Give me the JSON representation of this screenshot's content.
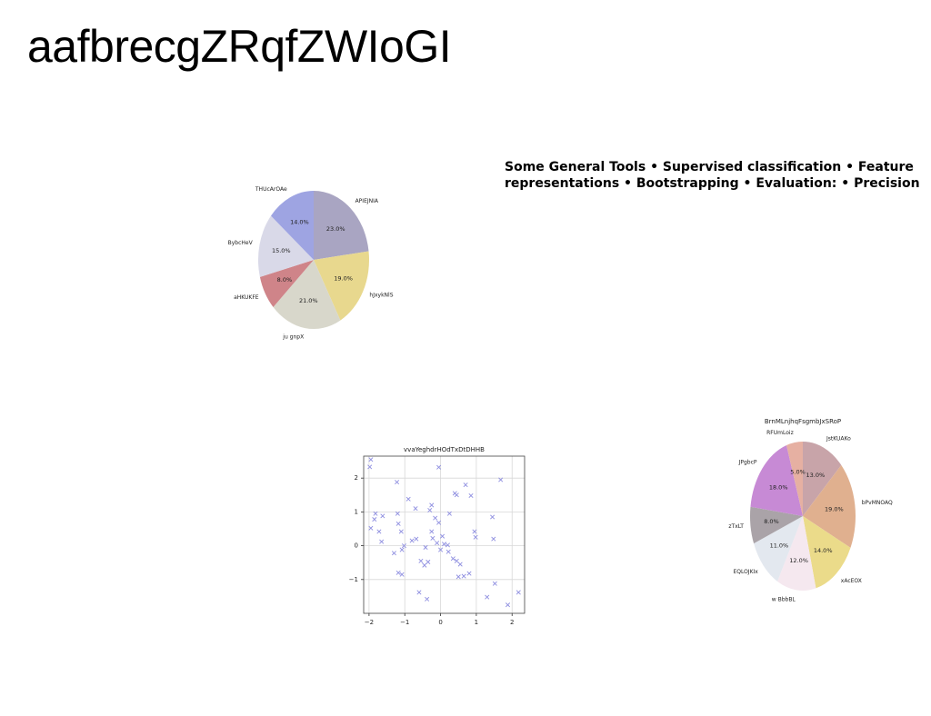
{
  "page": {
    "title": "aafbrecgZRqfZWIoGI",
    "subtitle_line1": "Some General Tools • Supervised classification • Feature",
    "subtitle_line2": "representations • Bootstrapping • Evaluation: • Precision"
  },
  "chart_data": [
    {
      "type": "pie",
      "title": "",
      "slices": [
        {
          "label": "APIEJNIA",
          "value": 23.0,
          "color": "#a9a5c2"
        },
        {
          "label": "hJxykNlS",
          "value": 19.0,
          "color": "#e8d88e"
        },
        {
          "label": "ju gnpX",
          "value": 21.0,
          "color": "#d8d7cb"
        },
        {
          "label": "aHKUKFE",
          "value": 8.0,
          "color": "#cf8489"
        },
        {
          "label": "BybcHeV",
          "value": 15.0,
          "color": "#d9d9e8"
        },
        {
          "label": "THUcArOAe",
          "value": 14.0,
          "color": "#9ea4e2"
        }
      ],
      "value_labels": [
        "23.0%",
        "19.0%",
        "21.0%",
        "8.0%",
        "15.0%",
        "14.0%"
      ]
    },
    {
      "type": "scatter",
      "title": "vvaYeghdrHOdTxDtDHHB",
      "marker": "x",
      "color": "#8e8ee0",
      "xlim": [
        -2.15,
        2.35
      ],
      "ylim": [
        -2.0,
        2.65
      ],
      "xticks": [
        -2,
        -1,
        0,
        1,
        2
      ],
      "xtick_labels": [
        "−2",
        "−1",
        "0",
        "1",
        "2"
      ],
      "yticks": [
        -1,
        0,
        1,
        2
      ],
      "ytick_labels": [
        "−1",
        "0",
        "1",
        "2"
      ],
      "grid": true,
      "points": [
        [
          -1.95,
          2.55
        ],
        [
          -1.98,
          2.33
        ],
        [
          -1.95,
          0.52
        ],
        [
          -1.85,
          0.78
        ],
        [
          -1.82,
          0.95
        ],
        [
          -1.72,
          0.42
        ],
        [
          -1.65,
          0.12
        ],
        [
          -1.62,
          0.88
        ],
        [
          -1.3,
          -0.22
        ],
        [
          -1.22,
          1.88
        ],
        [
          -1.2,
          0.95
        ],
        [
          -1.18,
          0.65
        ],
        [
          -1.18,
          -0.8
        ],
        [
          -1.08,
          -0.85
        ],
        [
          -1.1,
          0.42
        ],
        [
          -1.08,
          -0.12
        ],
        [
          -1.02,
          0.0
        ],
        [
          -0.9,
          1.38
        ],
        [
          -0.8,
          0.15
        ],
        [
          -0.7,
          1.1
        ],
        [
          -0.68,
          0.2
        ],
        [
          -0.55,
          -0.45
        ],
        [
          -0.45,
          -0.58
        ],
        [
          -0.42,
          -0.05
        ],
        [
          -0.35,
          -0.48
        ],
        [
          -0.3,
          1.05
        ],
        [
          -0.25,
          1.2
        ],
        [
          -0.25,
          0.42
        ],
        [
          -0.22,
          0.22
        ],
        [
          -0.15,
          0.82
        ],
        [
          -0.1,
          0.08
        ],
        [
          -0.05,
          0.68
        ],
        [
          -0.05,
          2.32
        ],
        [
          0.0,
          -0.12
        ],
        [
          0.05,
          0.28
        ],
        [
          0.1,
          0.05
        ],
        [
          0.2,
          0.02
        ],
        [
          0.22,
          -0.18
        ],
        [
          0.25,
          0.95
        ],
        [
          0.35,
          -0.38
        ],
        [
          0.4,
          1.55
        ],
        [
          0.45,
          1.5
        ],
        [
          0.45,
          -0.45
        ],
        [
          0.5,
          -0.92
        ],
        [
          0.55,
          -0.55
        ],
        [
          0.65,
          -0.9
        ],
        [
          0.7,
          1.8
        ],
        [
          0.8,
          -0.82
        ],
        [
          0.85,
          1.48
        ],
        [
          0.95,
          0.42
        ],
        [
          0.98,
          0.25
        ],
        [
          1.3,
          -1.52
        ],
        [
          1.45,
          0.85
        ],
        [
          1.48,
          0.2
        ],
        [
          1.52,
          -1.12
        ],
        [
          1.68,
          1.95
        ],
        [
          1.88,
          -1.75
        ],
        [
          2.18,
          -1.38
        ],
        [
          -0.6,
          -1.38
        ],
        [
          -0.38,
          -1.58
        ]
      ]
    },
    {
      "type": "pie",
      "title": "BrnMLnjhqFsgmbJxSRoP",
      "slices": [
        {
          "label": "JstKUAKo",
          "value": 13.0,
          "color": "#c8a4a9"
        },
        {
          "label": "bPvMNOAQ",
          "value": 19.0,
          "color": "#e0b08f"
        },
        {
          "label": "xAcEOX",
          "value": 14.0,
          "color": "#ebdb8a"
        },
        {
          "label": "w BbbBL",
          "value": 12.0,
          "color": "#f5e8ef"
        },
        {
          "label": "EQLOJKIx",
          "value": 11.0,
          "color": "#e3e8ef"
        },
        {
          "label": "zTxLT",
          "value": 8.0,
          "color": "#aaa3a8"
        },
        {
          "label": "JPgbcP",
          "value": 18.0,
          "color": "#c78ad5"
        },
        {
          "label": "RFUmLoiz",
          "value": 5.0,
          "color": "#e6b0a2"
        }
      ],
      "value_labels": [
        "13.0%",
        "19.0%",
        "14.0%",
        "12.0%",
        "11.0%",
        "8.0%",
        "18.0%",
        "5.0%"
      ]
    }
  ]
}
